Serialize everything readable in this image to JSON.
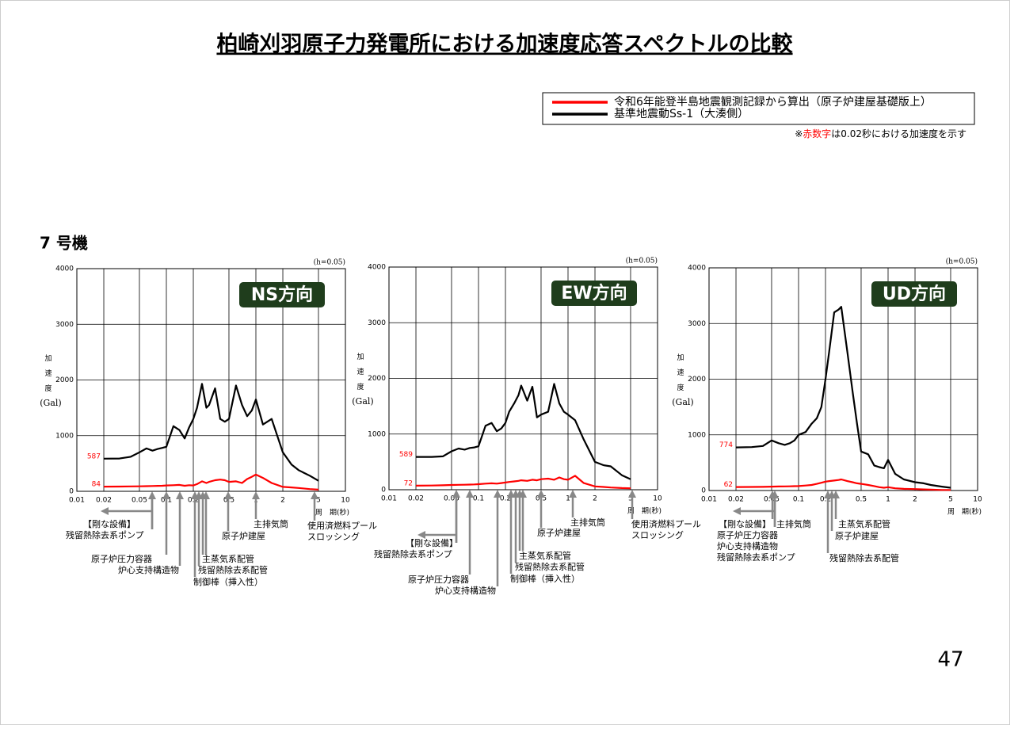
{
  "header": {
    "title": "柏崎刈羽原子力発電所における加速度応答スペクトルの比較"
  },
  "legend": [
    {
      "label": "令和6年能登半島地震観測記録から算出（原子炉建屋基礎版上）",
      "color": "#ff0000"
    },
    {
      "label": "基準地震動Ss-1（大湊側）",
      "color": "#000000"
    }
  ],
  "note": {
    "prefix": "※",
    "highlight": "赤数字",
    "rest": "は0.02秒における加速度を示す"
  },
  "unit": "7 号機",
  "page_number": "47",
  "chart_data": [
    {
      "type": "line",
      "title": "NS方向",
      "damping": "(h=0.05)",
      "y_label": "加速度",
      "y_unit": "(Gal)",
      "x_label": "周　期(秒)",
      "log_x": true,
      "grid": true,
      "xlim": [
        0.01,
        10
      ],
      "xticks": [
        0.01,
        0.02,
        0.05,
        0.1,
        0.2,
        0.5,
        1,
        2,
        5,
        10
      ],
      "ylim": [
        0,
        4000
      ],
      "yticks": [
        0,
        1000,
        2000,
        3000,
        4000
      ],
      "x": [
        0.02,
        0.03,
        0.04,
        0.05,
        0.06,
        0.07,
        0.08,
        0.09,
        0.1,
        0.12,
        0.14,
        0.16,
        0.18,
        0.2,
        0.22,
        0.25,
        0.28,
        0.3,
        0.35,
        0.4,
        0.45,
        0.5,
        0.6,
        0.7,
        0.8,
        0.9,
        1,
        1.2,
        1.5,
        2,
        2.5,
        3,
        4,
        5
      ],
      "series": [
        {
          "color": "#000000",
          "label_first_value": true,
          "values": [
            587,
            590,
            620,
            700,
            770,
            730,
            760,
            780,
            800,
            1170,
            1100,
            950,
            1150,
            1300,
            1500,
            1930,
            1500,
            1550,
            1850,
            1300,
            1250,
            1300,
            1900,
            1550,
            1350,
            1450,
            1650,
            1200,
            1300,
            700,
            480,
            380,
            280,
            190
          ]
        },
        {
          "color": "#ff0000",
          "label_first_value": true,
          "values": [
            84,
            85,
            88,
            90,
            92,
            95,
            98,
            100,
            105,
            110,
            115,
            100,
            110,
            105,
            130,
            180,
            150,
            170,
            200,
            210,
            200,
            170,
            180,
            150,
            220,
            260,
            300,
            240,
            150,
            80,
            70,
            60,
            40,
            30
          ]
        }
      ],
      "annotations": [
        {
          "lines": [
            "【剛な設備】",
            "残留熱除去系ポンプ"
          ]
        },
        {
          "lines": [
            "原子炉圧力容器"
          ]
        },
        {
          "lines": [
            "炉心支持構造物"
          ]
        },
        {
          "lines": [
            "主蒸気系配管"
          ]
        },
        {
          "lines": [
            "残留熱除去系配管"
          ]
        },
        {
          "lines": [
            "制御棒（挿入性）"
          ]
        },
        {
          "lines": [
            "原子炉建屋"
          ]
        },
        {
          "lines": [
            "主排気筒"
          ]
        },
        {
          "lines": [
            "使用済燃料プール",
            "スロッシング"
          ]
        }
      ]
    },
    {
      "type": "line",
      "title": "EW方向",
      "damping": "(h=0.05)",
      "y_label": "加速度",
      "y_unit": "(Gal)",
      "x_label": "周　期(秒)",
      "log_x": true,
      "grid": true,
      "xlim": [
        0.01,
        10
      ],
      "xticks": [
        0.01,
        0.02,
        0.05,
        0.1,
        0.2,
        0.5,
        1,
        2,
        5,
        10
      ],
      "ylim": [
        0,
        4000
      ],
      "yticks": [
        0,
        1000,
        2000,
        3000,
        4000
      ],
      "x": [
        0.02,
        0.03,
        0.04,
        0.05,
        0.06,
        0.07,
        0.08,
        0.09,
        0.1,
        0.12,
        0.14,
        0.16,
        0.18,
        0.2,
        0.22,
        0.25,
        0.28,
        0.3,
        0.35,
        0.4,
        0.45,
        0.5,
        0.6,
        0.7,
        0.8,
        0.9,
        1,
        1.2,
        1.5,
        2,
        2.5,
        3,
        4,
        5
      ],
      "series": [
        {
          "color": "#000000",
          "label_first_value": true,
          "values": [
            589,
            590,
            600,
            690,
            740,
            720,
            750,
            760,
            780,
            1150,
            1200,
            1050,
            1100,
            1200,
            1400,
            1550,
            1700,
            1870,
            1600,
            1850,
            1300,
            1350,
            1400,
            1900,
            1550,
            1400,
            1350,
            1250,
            900,
            500,
            440,
            420,
            260,
            190
          ]
        },
        {
          "color": "#ff0000",
          "label_first_value": true,
          "values": [
            72,
            75,
            80,
            85,
            88,
            90,
            92,
            95,
            100,
            110,
            115,
            110,
            120,
            130,
            140,
            150,
            160,
            170,
            160,
            180,
            170,
            190,
            200,
            180,
            220,
            190,
            180,
            250,
            120,
            60,
            50,
            40,
            30,
            25
          ]
        }
      ],
      "annotations": [
        {
          "lines": [
            "【剛な設備】",
            "残留熱除去系ポンプ"
          ]
        },
        {
          "lines": [
            "原子炉圧力容器"
          ]
        },
        {
          "lines": [
            "炉心支持構造物"
          ]
        },
        {
          "lines": [
            "主蒸気系配管"
          ]
        },
        {
          "lines": [
            "残留熱除去系配管"
          ]
        },
        {
          "lines": [
            "制御棒（挿入性）"
          ]
        },
        {
          "lines": [
            "原子炉建屋"
          ]
        },
        {
          "lines": [
            "主排気筒"
          ]
        },
        {
          "lines": [
            "使用済燃料プール",
            "スロッシング"
          ]
        }
      ]
    },
    {
      "type": "line",
      "title": "UD方向",
      "damping": "(h=0.05)",
      "y_label": "加速度",
      "y_unit": "(Gal)",
      "x_label": "周　期(秒)",
      "log_x": true,
      "grid": true,
      "xlim": [
        0.01,
        10
      ],
      "xticks": [
        0.01,
        0.02,
        0.05,
        0.1,
        0.2,
        0.5,
        1,
        2,
        5,
        10
      ],
      "ylim": [
        0,
        4000
      ],
      "yticks": [
        0,
        1000,
        2000,
        3000,
        4000
      ],
      "x": [
        0.02,
        0.03,
        0.04,
        0.05,
        0.06,
        0.07,
        0.08,
        0.09,
        0.1,
        0.12,
        0.14,
        0.16,
        0.18,
        0.2,
        0.22,
        0.25,
        0.28,
        0.3,
        0.35,
        0.4,
        0.45,
        0.5,
        0.6,
        0.7,
        0.8,
        0.9,
        1,
        1.2,
        1.5,
        2,
        2.5,
        3,
        4,
        5
      ],
      "series": [
        {
          "color": "#000000",
          "label_first_value": true,
          "values": [
            774,
            780,
            800,
            900,
            850,
            820,
            850,
            900,
            1000,
            1050,
            1200,
            1300,
            1500,
            2000,
            2500,
            3200,
            3250,
            3300,
            2500,
            1800,
            1200,
            700,
            650,
            450,
            420,
            400,
            550,
            300,
            200,
            150,
            130,
            100,
            70,
            50
          ]
        },
        {
          "color": "#ff0000",
          "label_first_value": true,
          "values": [
            62,
            64,
            66,
            70,
            72,
            74,
            76,
            78,
            80,
            90,
            100,
            120,
            140,
            160,
            170,
            180,
            190,
            200,
            170,
            150,
            130,
            120,
            100,
            80,
            60,
            50,
            60,
            40,
            30,
            25,
            20,
            15,
            10,
            10
          ]
        }
      ],
      "annotations": [
        {
          "lines": [
            "【剛な設備】",
            "原子炉圧力容器",
            "炉心支持構造物",
            "残留熱除去系ポンプ"
          ]
        },
        {
          "lines": [
            "主排気筒"
          ]
        },
        {
          "lines": [
            "主蒸気系配管"
          ]
        },
        {
          "lines": [
            "原子炉建屋"
          ]
        },
        {
          "lines": [
            "残留熱除去系配管"
          ]
        }
      ]
    }
  ]
}
